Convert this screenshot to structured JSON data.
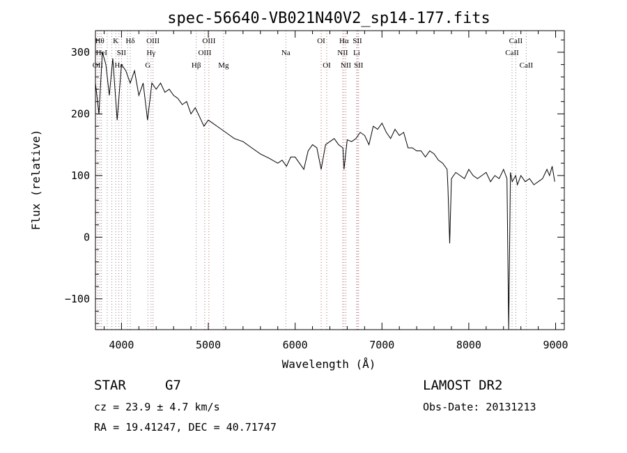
{
  "chart_data": {
    "type": "line",
    "title": "spec-56640-VB021N40V2_sp14-177.fits",
    "xlabel": "Wavelength (Å)",
    "ylabel": "Flux (relative)",
    "xlim": [
      3700,
      9100
    ],
    "ylim": [
      -150,
      335
    ],
    "xticks": [
      4000,
      5000,
      6000,
      7000,
      8000,
      9000
    ],
    "yticks": [
      -100,
      0,
      100,
      200,
      300
    ],
    "grid": false,
    "series": [
      {
        "x": [
          3700,
          3740,
          3780,
          3820,
          3860,
          3900,
          3950,
          4000,
          4050,
          4100,
          4150,
          4200,
          4250,
          4300,
          4350,
          4400,
          4450,
          4500,
          4550,
          4600,
          4650,
          4700,
          4750,
          4800,
          4850,
          4900,
          4950,
          5000,
          5050,
          5100,
          5150,
          5200,
          5250,
          5300,
          5400,
          5500,
          5600,
          5700,
          5800,
          5850,
          5900,
          5950,
          6000,
          6050,
          6100,
          6150,
          6200,
          6250,
          6300,
          6350,
          6400,
          6450,
          6500,
          6550,
          6563,
          6600,
          6650,
          6700,
          6750,
          6800,
          6850,
          6900,
          6950,
          7000,
          7050,
          7100,
          7150,
          7200,
          7250,
          7300,
          7350,
          7400,
          7450,
          7500,
          7550,
          7600,
          7650,
          7700,
          7750,
          7760,
          7780,
          7800,
          7850,
          7900,
          7950,
          8000,
          8050,
          8100,
          8150,
          8200,
          8250,
          8300,
          8350,
          8400,
          8440,
          8460,
          8480,
          8500,
          8540,
          8560,
          8600,
          8650,
          8700,
          8750,
          8800,
          8850,
          8900,
          8930,
          8960,
          8990
        ],
        "y": [
          250,
          200,
          300,
          280,
          230,
          290,
          190,
          280,
          270,
          250,
          270,
          230,
          250,
          190,
          250,
          240,
          250,
          235,
          240,
          230,
          225,
          215,
          220,
          200,
          210,
          195,
          180,
          190,
          185,
          180,
          175,
          170,
          165,
          160,
          155,
          145,
          135,
          128,
          120,
          125,
          115,
          130,
          130,
          120,
          110,
          140,
          150,
          145,
          110,
          150,
          155,
          160,
          150,
          145,
          110,
          158,
          155,
          160,
          170,
          165,
          150,
          180,
          175,
          185,
          170,
          160,
          175,
          165,
          170,
          145,
          145,
          140,
          140,
          130,
          140,
          135,
          125,
          120,
          110,
          80,
          -10,
          95,
          105,
          100,
          95,
          110,
          100,
          95,
          100,
          105,
          90,
          100,
          95,
          110,
          95,
          -150,
          105,
          90,
          100,
          85,
          100,
          90,
          95,
          85,
          90,
          95,
          110,
          100,
          115,
          90
        ]
      }
    ],
    "annotations": [
      "Hθ",
      "HeI",
      "Hε",
      "K",
      "SII",
      "H",
      "Hδ",
      "OIII",
      "Hγ",
      "G",
      "Hβ",
      "OIII",
      "OIII",
      "Mg",
      "Na",
      "OI",
      "OI",
      "Hα",
      "NII",
      "NII",
      "SII",
      "SII",
      "Li",
      "CaII",
      "CaII",
      "CaII"
    ]
  },
  "texts": {
    "title": "spec-56640-VB021N40V2_sp14-177.fits",
    "class_label": "STAR",
    "subclass": "G7",
    "survey": "LAMOST DR2",
    "cz": "cz = 23.9 ± 4.7 km/s",
    "obs_date": "Obs-Date: 20131213",
    "coords": "RA =  19.41247, DEC =  40.71747"
  },
  "lines": [
    {
      "w": 3750,
      "label": "Hθ",
      "row": 0,
      "color": "#888888"
    },
    {
      "w": 3770,
      "label": "HeI",
      "row": 1,
      "color": "#888888"
    },
    {
      "w": 3727,
      "label": "OII",
      "row": 2,
      "color": "#c06060"
    },
    {
      "w": 3835,
      "label": "",
      "row": 0,
      "color": "#888888"
    },
    {
      "w": 3889,
      "label": "",
      "row": 0,
      "color": "#888888"
    },
    {
      "w": 3934,
      "label": "K",
      "row": 0,
      "color": "#888888"
    },
    {
      "w": 3970,
      "label": "Hε",
      "row": 2,
      "color": "#888888"
    },
    {
      "w": 4000,
      "label": "SII",
      "row": 1,
      "color": "#c06060"
    },
    {
      "w": 4101,
      "label": "Hδ",
      "row": 0,
      "color": "#888888"
    },
    {
      "w": 4070,
      "label": "",
      "row": 0,
      "color": "#888888"
    },
    {
      "w": 4340,
      "label": "Hγ",
      "row": 1,
      "color": "#888888"
    },
    {
      "w": 4363,
      "label": "OIII",
      "row": 0,
      "color": "#c06060"
    },
    {
      "w": 4304,
      "label": "G",
      "row": 2,
      "color": "#888888"
    },
    {
      "w": 4861,
      "label": "Hβ",
      "row": 2,
      "color": "#888888"
    },
    {
      "w": 4959,
      "label": "OIII",
      "row": 1,
      "color": "#c06060"
    },
    {
      "w": 5007,
      "label": "OIII",
      "row": 0,
      "color": "#c06060"
    },
    {
      "w": 5175,
      "label": "Mg",
      "row": 2,
      "color": "#888888"
    },
    {
      "w": 5893,
      "label": "Na",
      "row": 1,
      "color": "#888888"
    },
    {
      "w": 6300,
      "label": "OI",
      "row": 0,
      "color": "#c06060"
    },
    {
      "w": 6364,
      "label": "OI",
      "row": 2,
      "color": "#c06060"
    },
    {
      "w": 6563,
      "label": "Hα",
      "row": 0,
      "color": "#888888"
    },
    {
      "w": 6548,
      "label": "NII",
      "row": 1,
      "color": "#c06060"
    },
    {
      "w": 6584,
      "label": "NII",
      "row": 2,
      "color": "#c06060"
    },
    {
      "w": 6717,
      "label": "SII",
      "row": 0,
      "color": "#c06060"
    },
    {
      "w": 6731,
      "label": "SII",
      "row": 2,
      "color": "#c06060"
    },
    {
      "w": 6708,
      "label": "Li",
      "row": 1,
      "color": "#888888"
    },
    {
      "w": 8498,
      "label": "CaII",
      "row": 1,
      "color": "#888888"
    },
    {
      "w": 8542,
      "label": "CaII",
      "row": 0,
      "color": "#888888"
    },
    {
      "w": 8662,
      "label": "CaII",
      "row": 2,
      "color": "#888888"
    }
  ]
}
